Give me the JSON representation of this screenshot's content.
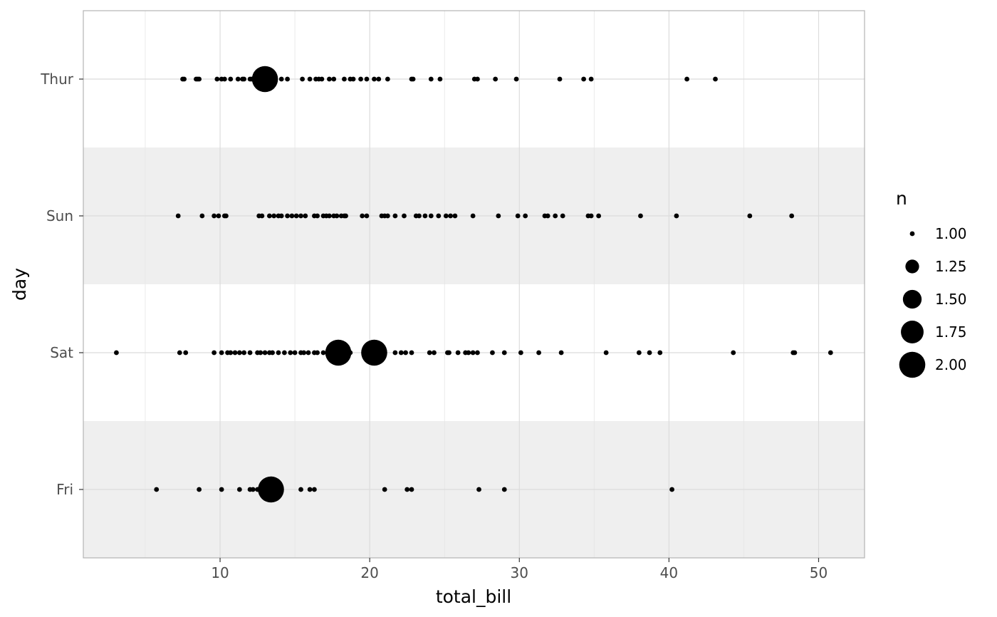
{
  "chart_data": {
    "type": "scatter",
    "xlabel": "total_bill",
    "ylabel": "day",
    "xlim": [
      0.86,
      53.07
    ],
    "x_ticks": [
      10,
      20,
      30,
      40,
      50
    ],
    "x_tick_labels": [
      "10",
      "20",
      "30",
      "40",
      "50"
    ],
    "categories": [
      "Fri",
      "Sat",
      "Sun",
      "Thur"
    ],
    "grid": true,
    "banded_rows": [
      "Fri",
      "Sun"
    ],
    "band_color": "#efefef",
    "point_color": "#000000",
    "size_legend": {
      "title": "n",
      "position": "right",
      "entries": [
        {
          "value": 1.0,
          "label": "1.00"
        },
        {
          "value": 1.25,
          "label": "1.25"
        },
        {
          "value": 1.5,
          "label": "1.50"
        },
        {
          "value": 1.75,
          "label": "1.75"
        },
        {
          "value": 2.0,
          "label": "2.00"
        }
      ]
    },
    "series": [
      {
        "day": "Thur",
        "points": [
          [
            7.5,
            1
          ],
          [
            7.6,
            1
          ],
          [
            8.4,
            1
          ],
          [
            8.5,
            1
          ],
          [
            8.6,
            1
          ],
          [
            9.8,
            1
          ],
          [
            10.1,
            1
          ],
          [
            10.3,
            1
          ],
          [
            10.7,
            1
          ],
          [
            11.2,
            1
          ],
          [
            11.5,
            1
          ],
          [
            11.6,
            1
          ],
          [
            12.0,
            1
          ],
          [
            12.1,
            1
          ],
          [
            12.4,
            1
          ],
          [
            13.0,
            2
          ],
          [
            14.1,
            1
          ],
          [
            14.5,
            1
          ],
          [
            15.5,
            1
          ],
          [
            16.0,
            1
          ],
          [
            16.4,
            1
          ],
          [
            16.6,
            1
          ],
          [
            16.8,
            1
          ],
          [
            17.3,
            1
          ],
          [
            17.6,
            1
          ],
          [
            18.3,
            1
          ],
          [
            18.7,
            1
          ],
          [
            18.9,
            1
          ],
          [
            19.4,
            1
          ],
          [
            19.8,
            1
          ],
          [
            20.3,
            1
          ],
          [
            20.6,
            1
          ],
          [
            21.2,
            1
          ],
          [
            22.8,
            1
          ],
          [
            22.9,
            1
          ],
          [
            24.1,
            1
          ],
          [
            24.7,
            1
          ],
          [
            27.0,
            1
          ],
          [
            27.2,
            1
          ],
          [
            28.4,
            1
          ],
          [
            29.8,
            1
          ],
          [
            32.7,
            1
          ],
          [
            34.3,
            1
          ],
          [
            34.8,
            1
          ],
          [
            41.2,
            1
          ],
          [
            43.1,
            1
          ]
        ]
      },
      {
        "day": "Sun",
        "points": [
          [
            7.2,
            1
          ],
          [
            8.8,
            1
          ],
          [
            9.6,
            1
          ],
          [
            9.9,
            1
          ],
          [
            10.3,
            1
          ],
          [
            10.4,
            1
          ],
          [
            12.6,
            1
          ],
          [
            12.8,
            1
          ],
          [
            13.3,
            1
          ],
          [
            13.6,
            1
          ],
          [
            13.9,
            1
          ],
          [
            14.1,
            1
          ],
          [
            14.5,
            1
          ],
          [
            14.8,
            1
          ],
          [
            15.1,
            1
          ],
          [
            15.4,
            1
          ],
          [
            15.7,
            1
          ],
          [
            16.3,
            1
          ],
          [
            16.5,
            1
          ],
          [
            16.9,
            1
          ],
          [
            17.1,
            1
          ],
          [
            17.3,
            1
          ],
          [
            17.6,
            1
          ],
          [
            17.8,
            1
          ],
          [
            18.1,
            1
          ],
          [
            18.3,
            1
          ],
          [
            18.4,
            1
          ],
          [
            19.5,
            1
          ],
          [
            19.8,
            1
          ],
          [
            20.8,
            1
          ],
          [
            21.0,
            1
          ],
          [
            21.2,
            1
          ],
          [
            21.7,
            1
          ],
          [
            22.3,
            1
          ],
          [
            23.1,
            1
          ],
          [
            23.3,
            1
          ],
          [
            23.7,
            1
          ],
          [
            24.1,
            1
          ],
          [
            24.6,
            1
          ],
          [
            25.1,
            1
          ],
          [
            25.4,
            1
          ],
          [
            25.7,
            1
          ],
          [
            26.9,
            1
          ],
          [
            28.6,
            1
          ],
          [
            29.9,
            1
          ],
          [
            30.4,
            1
          ],
          [
            31.7,
            1
          ],
          [
            31.9,
            1
          ],
          [
            32.4,
            1
          ],
          [
            32.9,
            1
          ],
          [
            34.6,
            1
          ],
          [
            34.8,
            1
          ],
          [
            35.3,
            1
          ],
          [
            38.1,
            1
          ],
          [
            40.5,
            1
          ],
          [
            45.4,
            1
          ],
          [
            48.2,
            1
          ]
        ]
      },
      {
        "day": "Sat",
        "points": [
          [
            3.07,
            1
          ],
          [
            7.3,
            1
          ],
          [
            7.7,
            1
          ],
          [
            9.6,
            1
          ],
          [
            10.1,
            1
          ],
          [
            10.5,
            1
          ],
          [
            10.7,
            1
          ],
          [
            11.0,
            1
          ],
          [
            11.3,
            1
          ],
          [
            11.6,
            1
          ],
          [
            12.0,
            1
          ],
          [
            12.5,
            1
          ],
          [
            12.7,
            1
          ],
          [
            13.0,
            1
          ],
          [
            13.3,
            1
          ],
          [
            13.5,
            1
          ],
          [
            13.9,
            1
          ],
          [
            14.3,
            1
          ],
          [
            14.7,
            1
          ],
          [
            15.0,
            1
          ],
          [
            15.4,
            1
          ],
          [
            15.6,
            1
          ],
          [
            15.9,
            1
          ],
          [
            16.3,
            1
          ],
          [
            16.5,
            1
          ],
          [
            16.9,
            1
          ],
          [
            17.3,
            1
          ],
          [
            17.9,
            2
          ],
          [
            18.7,
            1
          ],
          [
            20.3,
            2
          ],
          [
            21.7,
            1
          ],
          [
            22.1,
            1
          ],
          [
            22.4,
            1
          ],
          [
            22.8,
            1
          ],
          [
            24.0,
            1
          ],
          [
            24.3,
            1
          ],
          [
            25.2,
            1
          ],
          [
            25.3,
            1
          ],
          [
            25.9,
            1
          ],
          [
            26.4,
            1
          ],
          [
            26.6,
            1
          ],
          [
            26.9,
            1
          ],
          [
            27.2,
            1
          ],
          [
            28.2,
            1
          ],
          [
            29.0,
            1
          ],
          [
            30.1,
            1
          ],
          [
            31.3,
            1
          ],
          [
            32.8,
            1
          ],
          [
            35.8,
            1
          ],
          [
            38.0,
            1
          ],
          [
            38.7,
            1
          ],
          [
            39.4,
            1
          ],
          [
            44.3,
            1
          ],
          [
            48.3,
            1
          ],
          [
            48.4,
            1
          ],
          [
            50.8,
            1
          ]
        ]
      },
      {
        "day": "Fri",
        "points": [
          [
            5.75,
            1
          ],
          [
            8.6,
            1
          ],
          [
            10.1,
            1
          ],
          [
            11.3,
            1
          ],
          [
            12.0,
            1
          ],
          [
            12.2,
            1
          ],
          [
            12.5,
            1
          ],
          [
            13.4,
            2
          ],
          [
            15.4,
            1
          ],
          [
            16.0,
            1
          ],
          [
            16.3,
            1
          ],
          [
            21.0,
            1
          ],
          [
            22.5,
            1
          ],
          [
            22.8,
            1
          ],
          [
            27.3,
            1
          ],
          [
            29.0,
            1
          ],
          [
            40.2,
            1
          ]
        ]
      }
    ]
  }
}
